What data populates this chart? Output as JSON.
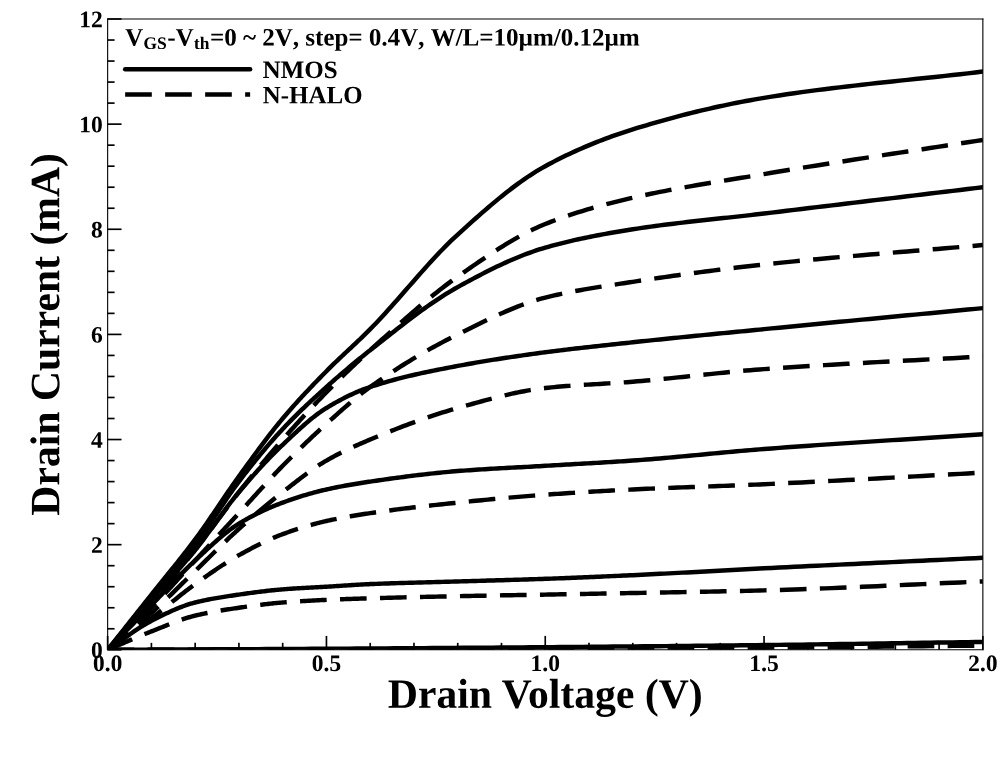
{
  "chart_data": {
    "type": "line",
    "xlabel": "Drain Voltage (V)",
    "ylabel": "Drain Current (mA)",
    "annotations": [
      "V$_{GS}$-V$_{th}$=0 ~ 2V, step= 0.4V, W/L=10µm/0.12µm"
    ],
    "x": [
      0,
      0.1,
      0.2,
      0.3,
      0.4,
      0.5,
      0.6,
      0.8,
      1.0,
      1.2,
      1.5,
      2.0
    ],
    "xlim": [
      0,
      2.0
    ],
    "xticks": [
      {
        "value": 0,
        "label": "0.0"
      },
      0.5,
      {
        "value": 1,
        "label": "1.0"
      },
      1.5,
      {
        "value": 2,
        "label": "2.0"
      }
    ],
    "ylim": [
      0,
      12
    ],
    "yticks": [
      0,
      2,
      4,
      6,
      8,
      10,
      12
    ],
    "grid": false,
    "legend": "top left",
    "marker": "none",
    "series": [
      {
        "name": "NMOS",
        "color": "#000000",
        "line_style": "solid",
        "values": [
          0,
          1.05,
          2.1,
          3.3,
          4.4,
          5.3,
          6.1,
          7.9,
          9.2,
          9.9,
          10.5,
          11.0
        ]
      },
      {
        "color": "#000000",
        "line_style": "solid",
        "values": [
          0,
          1.0,
          2.0,
          3.2,
          4.2,
          5.0,
          5.7,
          6.9,
          7.65,
          8.0,
          8.3,
          8.8
        ]
      },
      {
        "color": "#000000",
        "line_style": "solid",
        "values": [
          0,
          0.95,
          1.9,
          3.0,
          3.9,
          4.6,
          5.0,
          5.4,
          5.66,
          5.85,
          6.1,
          6.5
        ]
      },
      {
        "color": "#000000",
        "line_style": "solid",
        "values": [
          0,
          0.85,
          1.7,
          2.4,
          2.8,
          3.05,
          3.2,
          3.4,
          3.5,
          3.6,
          3.82,
          4.1
        ]
      },
      {
        "color": "#000000",
        "line_style": "solid",
        "values": [
          0,
          0.55,
          0.9,
          1.05,
          1.15,
          1.2,
          1.25,
          1.3,
          1.35,
          1.42,
          1.55,
          1.75
        ]
      },
      {
        "color": "#000000",
        "line_style": "solid",
        "x": [
          0,
          0.5,
          1.0,
          1.5,
          2.0
        ],
        "values": [
          0,
          0.02,
          0.05,
          0.09,
          0.15
        ]
      },
      {
        "name": "N-HALO",
        "color": "#000000",
        "line_style": "dashed",
        "values": [
          0,
          0.9,
          1.9,
          3.0,
          4.0,
          4.9,
          5.7,
          7.1,
          8.1,
          8.6,
          9.05,
          9.7
        ]
      },
      {
        "color": "#000000",
        "line_style": "dashed",
        "values": [
          0,
          0.8,
          1.7,
          2.6,
          3.5,
          4.3,
          5.0,
          6.0,
          6.7,
          7.0,
          7.33,
          7.7
        ]
      },
      {
        "color": "#000000",
        "line_style": "dashed",
        "values": [
          0,
          0.7,
          1.5,
          2.3,
          3.0,
          3.6,
          4.0,
          4.6,
          4.98,
          5.1,
          5.34,
          5.58
        ]
      },
      {
        "color": "#000000",
        "line_style": "dashed",
        "values": [
          0,
          0.6,
          1.25,
          1.8,
          2.2,
          2.45,
          2.6,
          2.8,
          2.95,
          3.05,
          3.15,
          3.37
        ]
      },
      {
        "color": "#000000",
        "line_style": "dashed",
        "values": [
          0,
          0.35,
          0.65,
          0.8,
          0.9,
          0.95,
          0.98,
          1.02,
          1.05,
          1.08,
          1.13,
          1.3
        ]
      },
      {
        "color": "#000000",
        "line_style": "dashed",
        "x": [
          0,
          0.5,
          1.0,
          1.5,
          2.0
        ],
        "values": [
          0,
          0.01,
          0.02,
          0.04,
          0.08
        ]
      }
    ]
  }
}
